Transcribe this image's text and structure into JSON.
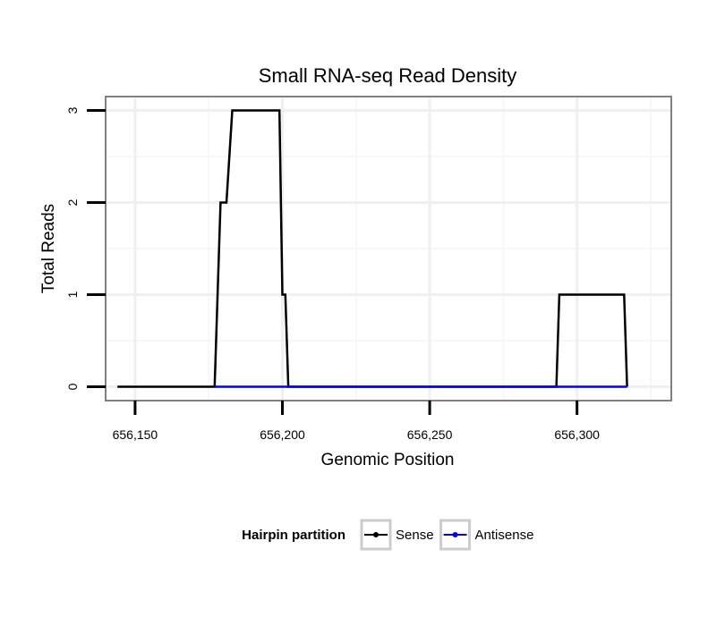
{
  "chart_data": {
    "type": "line",
    "title": "Small RNA-seq Read Density",
    "xlabel": "Genomic Position",
    "ylabel": "Total Reads",
    "xlim": [
      656140,
      656332
    ],
    "ylim": [
      -0.15,
      3.15
    ],
    "x_ticks": [
      656150,
      656200,
      656250,
      656300
    ],
    "x_tick_labels": [
      "656,150",
      "656,200",
      "656,250",
      "656,300"
    ],
    "y_ticks": [
      0,
      1,
      2,
      3
    ],
    "y_tick_labels": [
      "0",
      "1",
      "2",
      "3"
    ],
    "grid": true,
    "legend": {
      "title": "Hairpin partition",
      "position": "bottom"
    },
    "series": [
      {
        "name": "Sense",
        "color": "#000000",
        "x": [
          656144,
          656177,
          656179,
          656181,
          656183,
          656199,
          656200,
          656201,
          656202,
          656293,
          656294,
          656316,
          656317
        ],
        "y": [
          0,
          0,
          2,
          2,
          3,
          3,
          1,
          1,
          0,
          0,
          1,
          1,
          0
        ]
      },
      {
        "name": "Antisense",
        "color": "#0000ff",
        "x": [
          656177,
          656202,
          656293,
          656317
        ],
        "y": [
          0,
          0,
          0,
          0
        ]
      }
    ]
  }
}
